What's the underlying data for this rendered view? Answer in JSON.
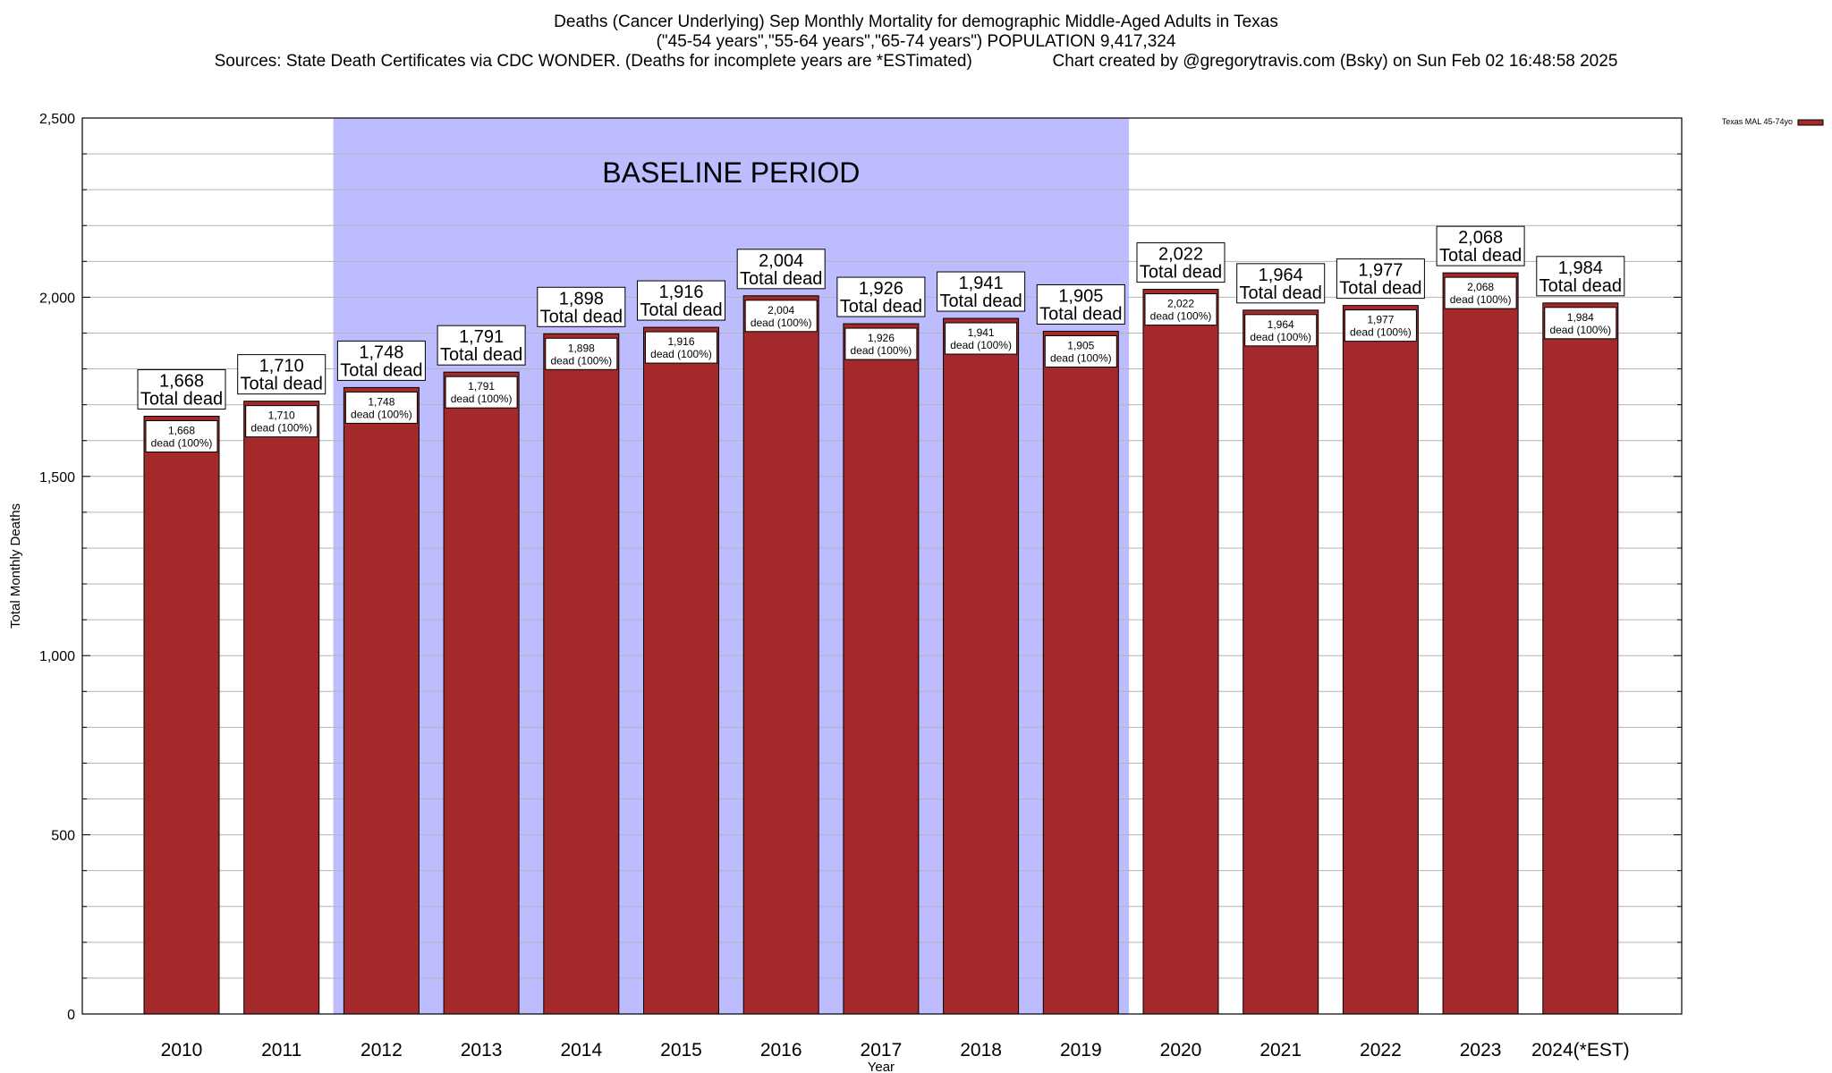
{
  "title_lines": [
    "Deaths (Cancer Underlying) Sep Monthly Mortality for demographic Middle-Aged Adults in Texas",
    "(\"45-54 years\",\"55-64 years\",\"65-74 years\") POPULATION 9,417,324",
    "Sources: State Death Certificates via CDC WONDER. (Deaths for incomplete years are *ESTimated)                 Chart created by @gregorytravis.com (Bsky) on Sun Feb 02 16:48:58 2025"
  ],
  "colors": {
    "bar": "#a3292a",
    "baseline_shade": "#bcbcff",
    "grid": "#b4b4b4"
  },
  "chart_data": {
    "type": "bar",
    "title": "Deaths (Cancer Underlying) Sep Monthly Mortality for demographic Middle-Aged Adults in Texas",
    "xlabel": "Year",
    "ylabel": "Total Monthly Deaths",
    "ylim": [
      0,
      2500
    ],
    "y_ticks": [
      0,
      500,
      1000,
      1500,
      2000,
      2500
    ],
    "y_tick_labels": [
      "0",
      "500",
      "1,000",
      "1,500",
      "2,000",
      "2,500"
    ],
    "grid": true,
    "legend_position": "top-right",
    "categories": [
      "2010",
      "2011",
      "2012",
      "2013",
      "2014",
      "2015",
      "2016",
      "2017",
      "2018",
      "2019",
      "2020",
      "2021",
      "2022",
      "2023",
      "2024(*EST)"
    ],
    "series": [
      {
        "name": "Texas MAL 45-74yo",
        "values": [
          1668,
          1710,
          1748,
          1791,
          1898,
          1916,
          2004,
          1926,
          1941,
          1905,
          2022,
          1964,
          1977,
          2068,
          1984
        ]
      }
    ],
    "value_labels": [
      "1,668",
      "1,710",
      "1,748",
      "1,791",
      "1,898",
      "1,916",
      "2,004",
      "1,926",
      "1,941",
      "1,905",
      "2,022",
      "1,964",
      "1,977",
      "2,068",
      "1,984"
    ],
    "total_label_suffix": "Total dead",
    "inner_label_suffix": "dead (100%)",
    "shaded_region": {
      "label": "BASELINE PERIOD",
      "from_category": "2012",
      "to_category": "2019"
    }
  }
}
